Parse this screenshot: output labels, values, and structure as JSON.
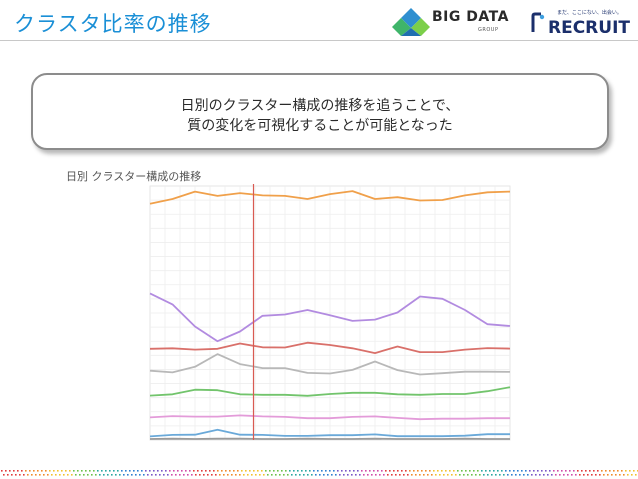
{
  "slide": {
    "title": "クラスタ比率の推移"
  },
  "logos": {
    "bigdata": "BIG DATA",
    "bigdata_sub": "GROUP",
    "recruit": "RECRUIT",
    "recruit_tagline": "まだ、ここにない、出会い。"
  },
  "callout": {
    "line1": "日別のクラスター構成の推移を追うことで、",
    "line2": "質の変化を可視化することが可能となった"
  },
  "chart_caption": "日別 クラスター構成の推移",
  "chart_data": {
    "type": "line",
    "x": [
      1,
      2,
      3,
      4,
      5,
      6,
      7,
      8,
      9,
      10,
      11,
      12,
      13,
      14,
      15,
      16,
      17
    ],
    "ylim": [
      0,
      100
    ],
    "grid": true,
    "legend": "none",
    "marker_x": 5.6,
    "marker_label": "",
    "series": [
      {
        "color": "#f0a04a",
        "values": [
          93.0,
          94.9,
          97.8,
          96.1,
          97.2,
          96.3,
          96.1,
          94.9,
          96.8,
          98.0,
          94.9,
          95.6,
          94.3,
          94.5,
          96.3,
          97.5,
          97.8
        ]
      },
      {
        "color": "#b28be0",
        "values": [
          57.7,
          53.4,
          44.7,
          38.9,
          42.7,
          48.9,
          49.4,
          51.2,
          49.1,
          46.9,
          47.4,
          50.2,
          56.5,
          55.6,
          51.2,
          45.6,
          44.9
        ]
      },
      {
        "color": "#d9706a",
        "values": [
          35.9,
          36.1,
          35.6,
          35.9,
          38.0,
          36.5,
          36.4,
          38.3,
          37.4,
          36.1,
          34.2,
          36.8,
          34.6,
          34.6,
          35.6,
          36.2,
          36.0
        ]
      },
      {
        "color": "#b8b8b8",
        "values": [
          27.3,
          26.6,
          28.8,
          33.8,
          29.9,
          28.3,
          28.3,
          26.4,
          26.2,
          27.6,
          30.9,
          27.5,
          25.8,
          26.3,
          26.9,
          26.9,
          26.8
        ]
      },
      {
        "color": "#72c46c",
        "values": [
          17.5,
          18.0,
          19.8,
          19.6,
          18.0,
          17.8,
          17.8,
          17.4,
          18.1,
          18.6,
          18.6,
          18.0,
          17.8,
          18.1,
          18.1,
          19.2,
          20.8
        ]
      },
      {
        "color": "#e39bd9",
        "values": [
          8.9,
          9.4,
          9.2,
          9.2,
          9.7,
          9.3,
          9.1,
          8.6,
          8.6,
          9.1,
          9.3,
          8.7,
          8.2,
          8.4,
          8.4,
          8.6,
          8.6
        ]
      },
      {
        "color": "#6aa9d9",
        "values": [
          1.4,
          2.0,
          2.1,
          4.0,
          2.1,
          2.0,
          1.6,
          1.6,
          1.9,
          1.9,
          2.2,
          1.5,
          1.5,
          1.5,
          1.7,
          2.3,
          2.3
        ]
      },
      {
        "color": "#9a9a9a",
        "values": [
          0.4,
          0.5,
          0.4,
          0.5,
          0.5,
          0.4,
          0.4,
          0.5,
          0.4,
          0.4,
          0.5,
          0.4,
          0.4,
          0.4,
          0.5,
          0.4,
          0.4
        ]
      }
    ]
  },
  "colors": {
    "title": "#1a8fd6",
    "marker_line": "#d95a52"
  }
}
